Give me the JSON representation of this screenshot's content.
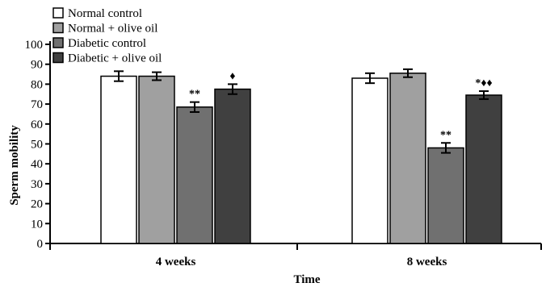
{
  "chart_data": {
    "type": "bar",
    "title": "",
    "xlabel": "Time",
    "ylabel": "Sperm mobility",
    "ylim": [
      0,
      100
    ],
    "yticks": [
      0,
      10,
      20,
      30,
      40,
      50,
      60,
      70,
      80,
      90,
      100
    ],
    "categories": [
      "4 weeks",
      "8 weeks"
    ],
    "legend_position": "top-left",
    "grid": false,
    "series": [
      {
        "name": "Normal control",
        "color": "#ffffff",
        "values": [
          84,
          83
        ],
        "errors": [
          2.5,
          2.5
        ],
        "annotations": [
          "",
          ""
        ]
      },
      {
        "name": "Normal + olive oil",
        "color": "#a0a0a0",
        "values": [
          84,
          85.5
        ],
        "errors": [
          2,
          2
        ],
        "annotations": [
          "",
          ""
        ]
      },
      {
        "name": "Diabetic control",
        "color": "#707070",
        "values": [
          68.5,
          48
        ],
        "errors": [
          2.5,
          2.5
        ],
        "annotations": [
          "**",
          "**"
        ]
      },
      {
        "name": "Diabetic + olive oil",
        "color": "#404040",
        "values": [
          77.5,
          74.5
        ],
        "errors": [
          2.5,
          2
        ],
        "annotations": [
          "♦",
          "*♦♦"
        ]
      }
    ]
  }
}
